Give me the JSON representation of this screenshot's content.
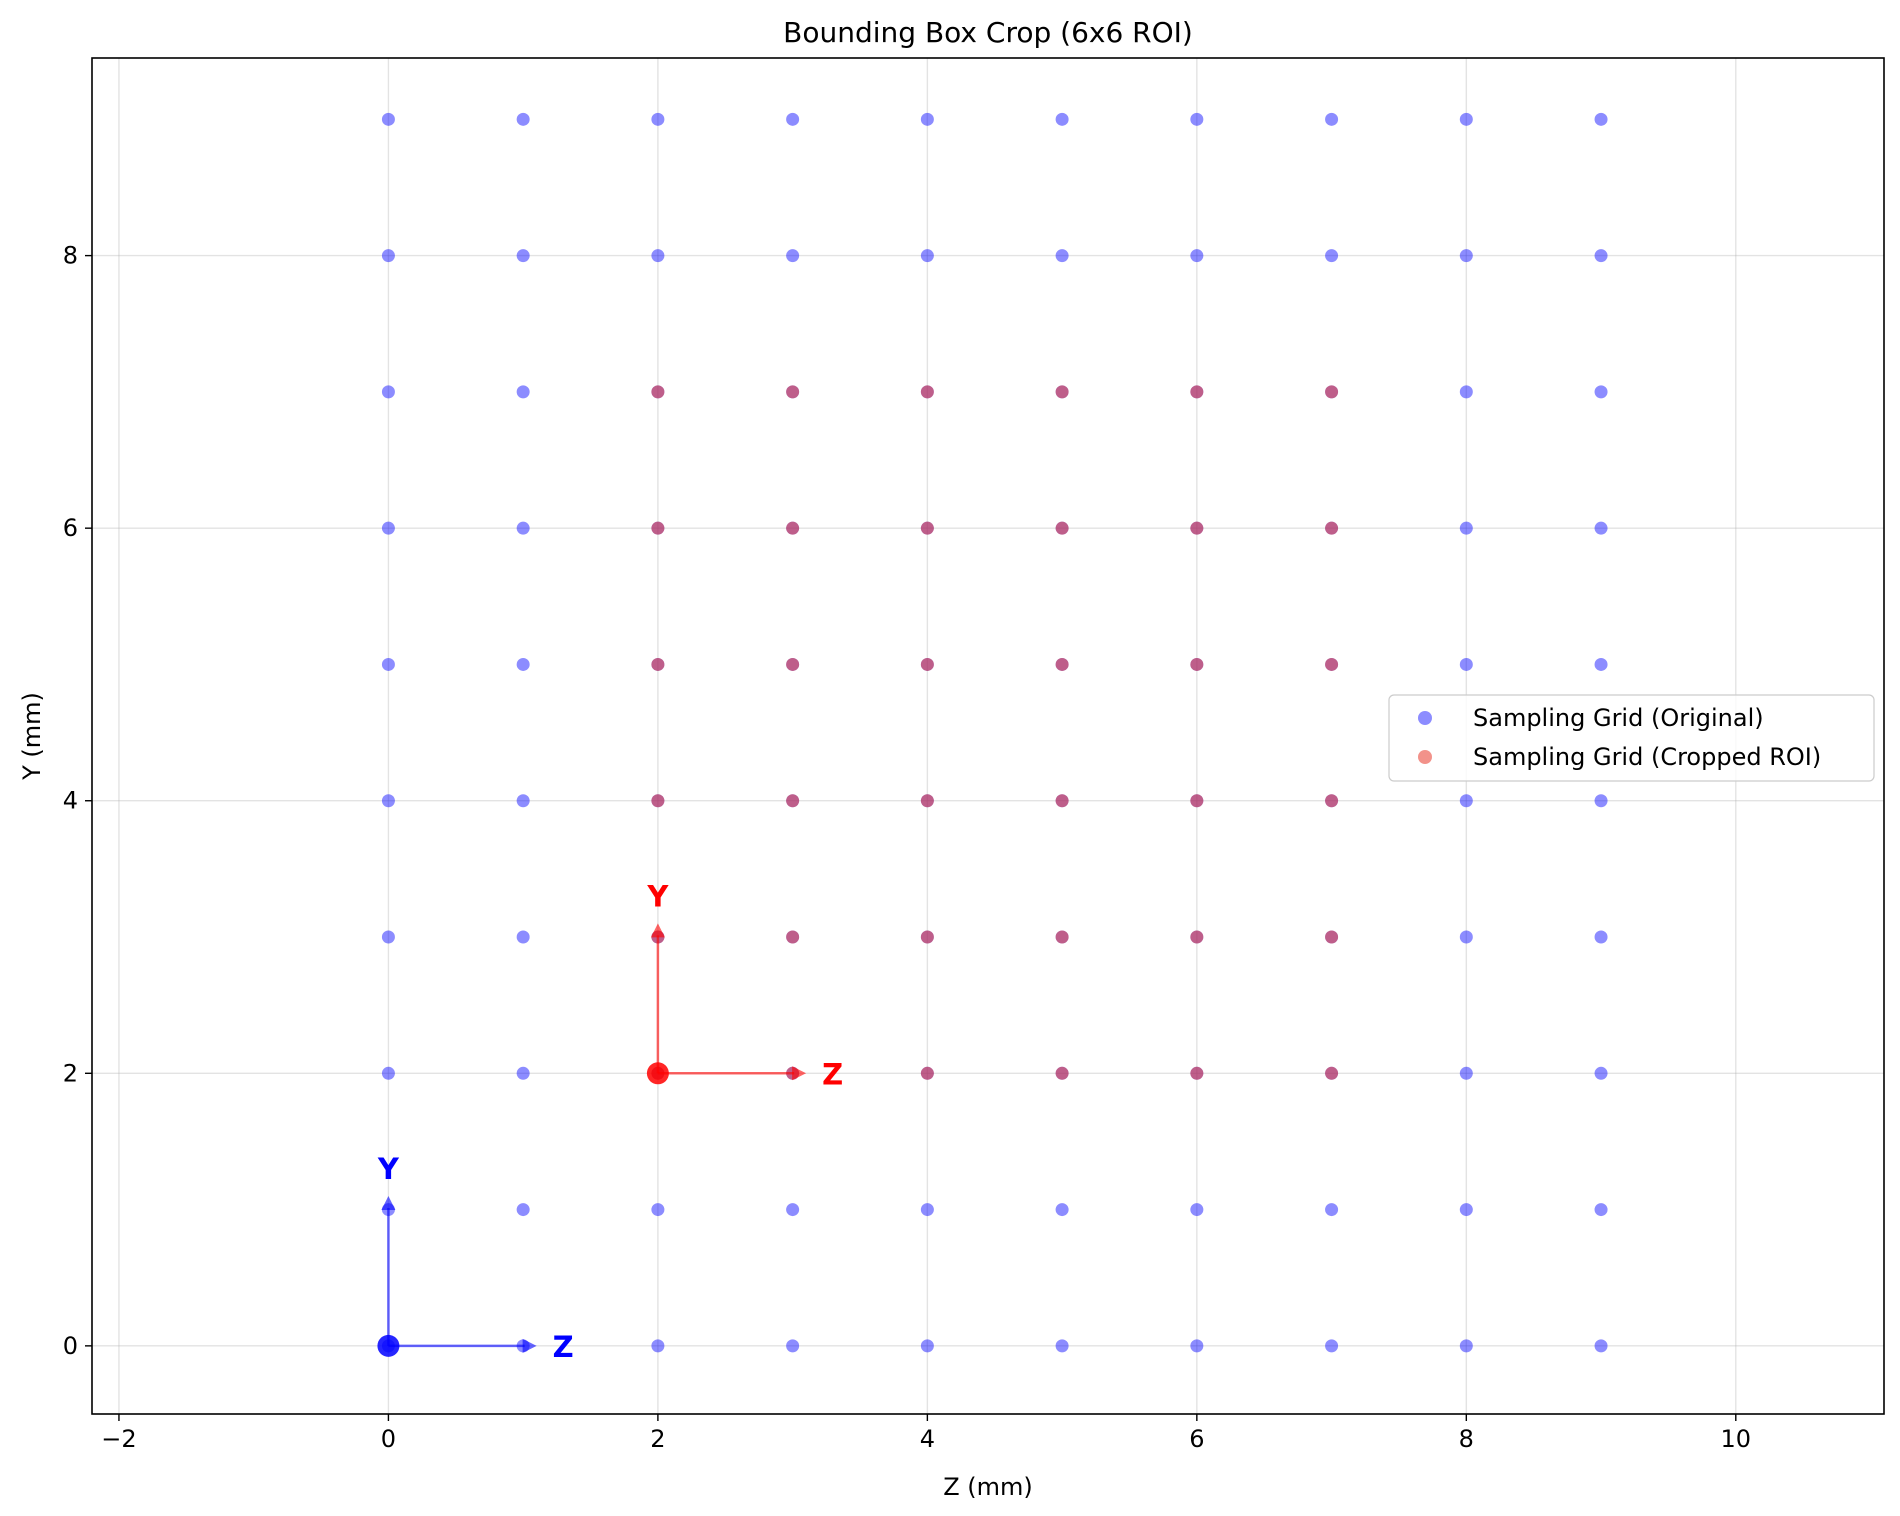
{
  "chart_data": {
    "type": "scatter",
    "title": "Bounding Box Crop (6x6 ROI)",
    "xlabel": "Z (mm)",
    "ylabel": "Y (mm)",
    "xlim": [
      -2.2,
      11.1
    ],
    "ylim": [
      -0.5,
      9.45
    ],
    "xticks": [
      -2,
      0,
      2,
      4,
      6,
      8,
      10
    ],
    "yticks": [
      0,
      2,
      4,
      6,
      8
    ],
    "grid": true,
    "legend_position": "center-right",
    "series": [
      {
        "name": "Sampling Grid (Original)",
        "color": "#0000ff",
        "alpha": 0.45,
        "x_values": [
          0,
          1,
          2,
          3,
          4,
          5,
          6,
          7,
          8,
          9
        ],
        "y_values": [
          0,
          1,
          2,
          3,
          4,
          5,
          6,
          7,
          8,
          9
        ]
      },
      {
        "name": "Sampling Grid (Cropped ROI)",
        "color": "#e8382a",
        "alpha": 0.55,
        "x_values": [
          2,
          3,
          4,
          5,
          6,
          7
        ],
        "y_values": [
          2,
          3,
          4,
          5,
          6,
          7
        ]
      }
    ],
    "annotations": [
      {
        "frame": "original",
        "color": "#0000ff",
        "origin": [
          0,
          0
        ],
        "x_arrow_end": [
          1.1,
          0
        ],
        "y_arrow_end": [
          0,
          1.1
        ],
        "x_label": "Z",
        "y_label": "Y"
      },
      {
        "frame": "cropped",
        "color": "#ff0000",
        "origin": [
          2,
          2
        ],
        "x_arrow_end": [
          3.1,
          2
        ],
        "y_arrow_end": [
          2,
          3.1
        ],
        "x_label": "Z",
        "y_label": "Y"
      }
    ]
  }
}
